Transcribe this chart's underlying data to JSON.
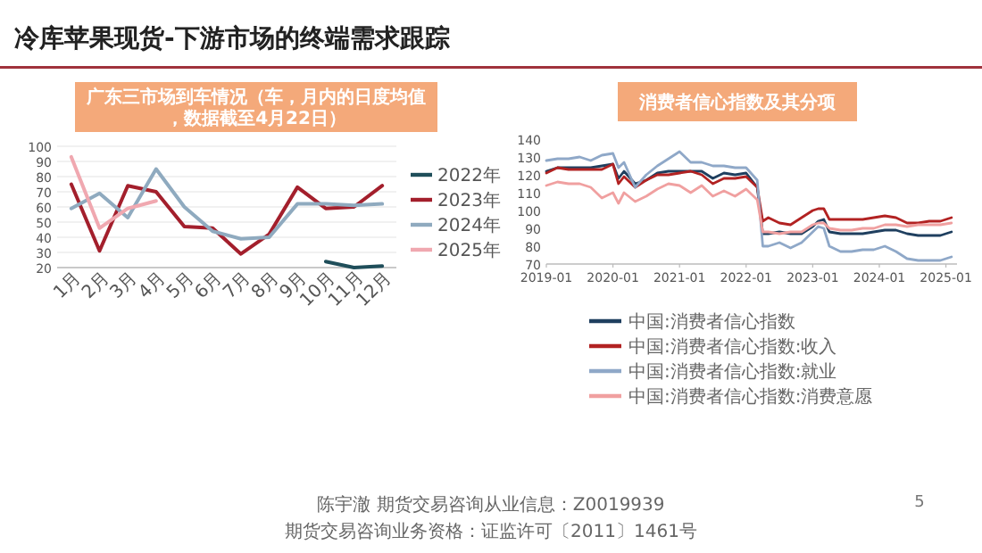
{
  "chart_data": [
    {
      "type": "line",
      "title": "广东三市场到车情况（车，月内的日度均值，数据截至4月22日）",
      "categories": [
        "1月",
        "2月",
        "3月",
        "4月",
        "5月",
        "6月",
        "7月",
        "8月",
        "9月",
        "10月",
        "11月",
        "12月"
      ],
      "series": [
        {
          "name": "2022年",
          "color": "#1f4e5a",
          "values": [
            null,
            null,
            null,
            null,
            null,
            null,
            null,
            null,
            null,
            24,
            20,
            21
          ]
        },
        {
          "name": "2023年",
          "color": "#a31f2c",
          "values": [
            75,
            31,
            74,
            70,
            47,
            46,
            29,
            42,
            73,
            59,
            60,
            74
          ]
        },
        {
          "name": "2024年",
          "color": "#8faabf",
          "values": [
            59,
            69,
            53,
            85,
            60,
            44,
            39,
            40,
            62,
            62,
            61,
            62
          ]
        },
        {
          "name": "2025年",
          "color": "#f0a8b0",
          "values": [
            93,
            46,
            59,
            64,
            null,
            null,
            null,
            null,
            null,
            null,
            null,
            null
          ]
        }
      ],
      "ylim": [
        20,
        100
      ],
      "yticks": [
        20,
        30,
        40,
        50,
        60,
        70,
        80,
        90,
        100
      ],
      "grid": "y",
      "legend": "right",
      "annotations": [
        "冷库苹果现货-下游市场的终端需求跟踪",
        "陈宇澈 期货交易咨询从业信息：Z0019939",
        "期货交易咨询业务资格：证监许可〔2011〕1461号",
        "5"
      ]
    },
    {
      "type": "line",
      "title": "消费者信心指数及其分项",
      "x": [
        "2019-01",
        "2019-03",
        "2019-05",
        "2019-07",
        "2019-09",
        "2019-11",
        "2020-01",
        "2020-02",
        "2020-03",
        "2020-05",
        "2020-07",
        "2020-09",
        "2020-11",
        "2021-01",
        "2021-03",
        "2021-05",
        "2021-07",
        "2021-09",
        "2021-11",
        "2022-01",
        "2022-03",
        "2022-04",
        "2022-05",
        "2022-07",
        "2022-09",
        "2022-11",
        "2023-01",
        "2023-02",
        "2023-03",
        "2023-04",
        "2023-06",
        "2023-08",
        "2023-10",
        "2023-12",
        "2024-02",
        "2024-04",
        "2024-06",
        "2024-08",
        "2024-10",
        "2024-12",
        "2025-02"
      ],
      "series": [
        {
          "name": "中国:消费者信心指数",
          "color": "#1f3f5f",
          "values": [
            122,
            124,
            124,
            124,
            124,
            125,
            126,
            118,
            122,
            115,
            117,
            121,
            122,
            122,
            122,
            122,
            118,
            121,
            120,
            121,
            113,
            87,
            87,
            88,
            87,
            87,
            91,
            94,
            95,
            88,
            87,
            87,
            87,
            88,
            89,
            89,
            87,
            86,
            86,
            86,
            88
          ]
        },
        {
          "name": "中国:消费者信心指数:收入",
          "color": "#b22222",
          "values": [
            121,
            124,
            123,
            123,
            123,
            123,
            126,
            115,
            119,
            113,
            117,
            120,
            120,
            121,
            122,
            120,
            115,
            118,
            118,
            119,
            113,
            94,
            96,
            93,
            92,
            96,
            100,
            101,
            101,
            95,
            95,
            95,
            95,
            96,
            97,
            96,
            93,
            93,
            94,
            94,
            96
          ]
        },
        {
          "name": "中国:消费者信心指数:就业",
          "color": "#8fa8c8",
          "values": [
            128,
            129,
            129,
            130,
            128,
            131,
            132,
            124,
            127,
            113,
            120,
            125,
            129,
            133,
            127,
            127,
            125,
            125,
            124,
            124,
            117,
            80,
            80,
            82,
            79,
            82,
            88,
            91,
            90,
            80,
            77,
            77,
            78,
            78,
            80,
            77,
            73,
            72,
            72,
            72,
            74
          ]
        },
        {
          "name": "中国:消费者信心指数:消费意愿",
          "color": "#f0a0a0",
          "values": [
            114,
            116,
            115,
            115,
            113,
            107,
            110,
            104,
            110,
            105,
            108,
            112,
            115,
            114,
            110,
            114,
            108,
            111,
            108,
            112,
            106,
            88,
            88,
            87,
            88,
            88,
            92,
            93,
            93,
            90,
            89,
            89,
            90,
            90,
            92,
            92,
            91,
            92,
            92,
            92,
            93
          ]
        }
      ],
      "xlim": [
        "2019-01",
        "2025-03"
      ],
      "xticks": [
        "2019-01",
        "2020-01",
        "2021-01",
        "2022-01",
        "2023-01",
        "2024-01",
        "2025-01"
      ],
      "ylim": [
        70,
        140
      ],
      "yticks": [
        70,
        80,
        90,
        100,
        110,
        120,
        130,
        140
      ],
      "legend": "bottom"
    }
  ]
}
